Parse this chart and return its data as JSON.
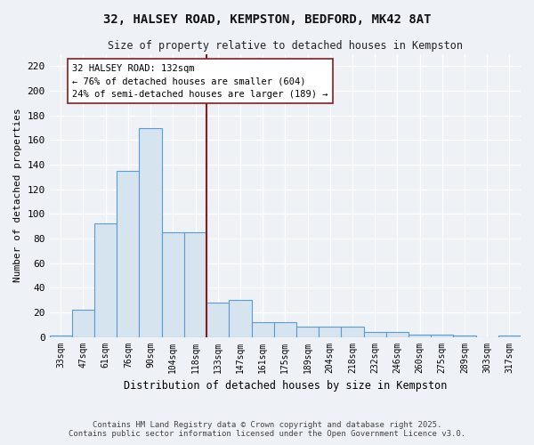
{
  "title_line1": "32, HALSEY ROAD, KEMPSTON, BEDFORD, MK42 8AT",
  "title_line2": "Size of property relative to detached houses in Kempston",
  "xlabel": "Distribution of detached houses by size in Kempston",
  "ylabel": "Number of detached properties",
  "bins": [
    "33sqm",
    "47sqm",
    "61sqm",
    "76sqm",
    "90sqm",
    "104sqm",
    "118sqm",
    "133sqm",
    "147sqm",
    "161sqm",
    "175sqm",
    "189sqm",
    "204sqm",
    "218sqm",
    "232sqm",
    "246sqm",
    "260sqm",
    "275sqm",
    "289sqm",
    "303sqm",
    "317sqm"
  ],
  "values": [
    1,
    22,
    92,
    135,
    170,
    85,
    85,
    28,
    30,
    12,
    12,
    8,
    8,
    8,
    4,
    4,
    2,
    2,
    1,
    0,
    1
  ],
  "bar_color": "#d6e4f0",
  "bar_edge_color": "#5b9bd5",
  "vline_color": "#8b1a1a",
  "vline_x": 7,
  "annotation_title": "32 HALSEY ROAD: 132sqm",
  "annotation_line2": "← 76% of detached houses are smaller (604)",
  "annotation_line3": "24% of semi-detached houses are larger (189) →",
  "annotation_box_edge": "#8b1a1a",
  "annotation_box_face": "#ffffff",
  "yticks": [
    0,
    20,
    40,
    60,
    80,
    100,
    120,
    140,
    160,
    180,
    200,
    220
  ],
  "ylim": [
    0,
    230
  ],
  "footer_line1": "Contains HM Land Registry data © Crown copyright and database right 2025.",
  "footer_line2": "Contains public sector information licensed under the Open Government Licence v3.0.",
  "bg_color": "#eef2f7",
  "grid_color": "#ffffff",
  "spine_color": "#c0c8d8"
}
